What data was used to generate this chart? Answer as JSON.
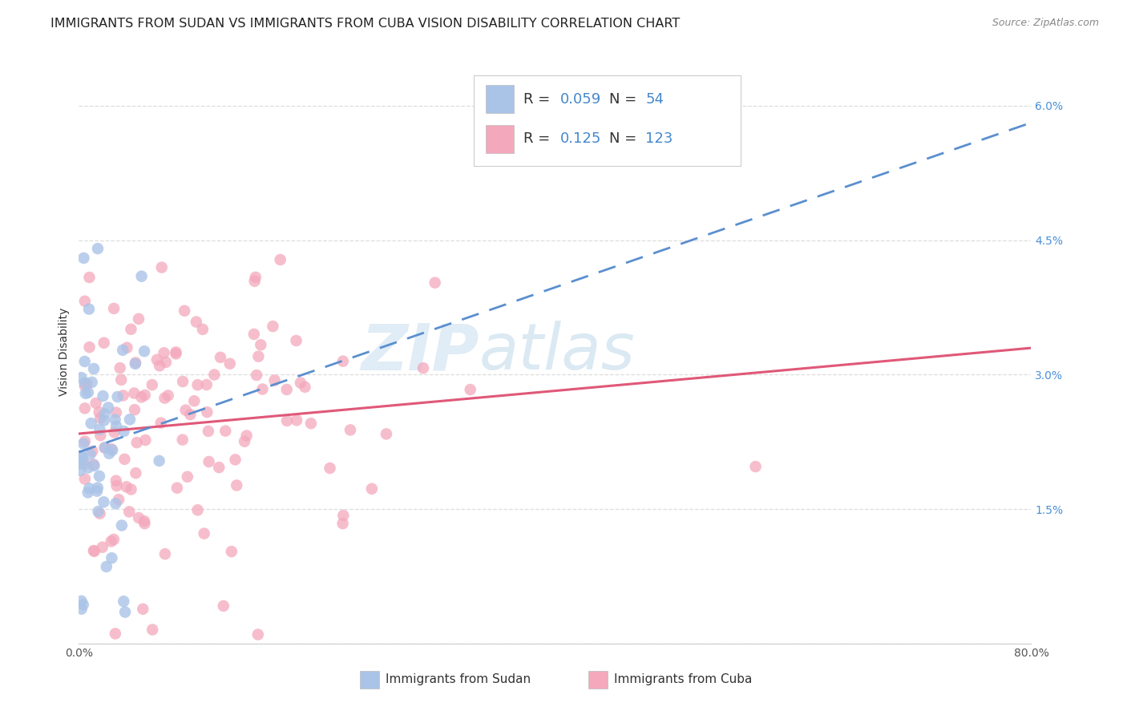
{
  "title": "IMMIGRANTS FROM SUDAN VS IMMIGRANTS FROM CUBA VISION DISABILITY CORRELATION CHART",
  "source": "Source: ZipAtlas.com",
  "ylabel": "Vision Disability",
  "xlim": [
    0.0,
    0.8
  ],
  "ylim": [
    0.0,
    0.065
  ],
  "yticks": [
    0.0,
    0.015,
    0.03,
    0.045,
    0.06
  ],
  "ytick_labels": [
    "",
    "1.5%",
    "3.0%",
    "4.5%",
    "6.0%"
  ],
  "xticks": [
    0.0,
    0.2,
    0.4,
    0.6,
    0.8
  ],
  "xtick_labels": [
    "0.0%",
    "",
    "",
    "",
    "80.0%"
  ],
  "sudan_R": 0.059,
  "sudan_N": 54,
  "cuba_R": 0.125,
  "cuba_N": 123,
  "sudan_color": "#aac4e8",
  "cuba_color": "#f4a8bc",
  "sudan_line_color": "#5b8fcf",
  "cuba_line_color": "#e05878",
  "sudan_line_style": "--",
  "cuba_line_style": "-",
  "background_color": "#ffffff",
  "grid_color": "#dddddd",
  "watermark_left": "ZIP",
  "watermark_right": "atlas",
  "watermark_color_left": "#d4e8f4",
  "watermark_color_right": "#c8dff0",
  "title_fontsize": 11.5,
  "source_fontsize": 9,
  "axis_label_fontsize": 10,
  "tick_fontsize": 10,
  "legend_fontsize": 13
}
